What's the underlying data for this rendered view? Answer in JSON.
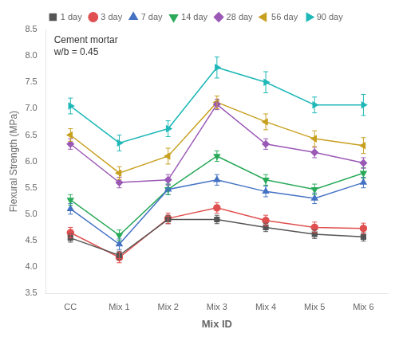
{
  "chart_data": {
    "type": "line",
    "categories": [
      "CC",
      "Mix 1",
      "Mix 2",
      "Mix 3",
      "Mix 4",
      "Mix 5",
      "Mix 6"
    ],
    "series": [
      {
        "name": "1 day",
        "color": "#555555",
        "marker": "square",
        "line_style": "solid",
        "values": [
          4.55,
          4.22,
          4.9,
          4.9,
          4.75,
          4.62,
          4.57
        ],
        "errors": [
          0.08,
          0.08,
          0.08,
          0.08,
          0.08,
          0.08,
          0.08
        ]
      },
      {
        "name": "3 day",
        "color": "#e05050",
        "marker": "circle",
        "line_style": "solid",
        "values": [
          4.65,
          4.18,
          4.92,
          5.12,
          4.88,
          4.75,
          4.73
        ],
        "errors": [
          0.1,
          0.1,
          0.1,
          0.1,
          0.1,
          0.1,
          0.1
        ]
      },
      {
        "name": "7 day",
        "color": "#4472c4",
        "marker": "triangle_up",
        "line_style": "solid",
        "values": [
          5.1,
          4.43,
          5.47,
          5.65,
          5.43,
          5.3,
          5.6
        ],
        "errors": [
          0.1,
          0.1,
          0.1,
          0.1,
          0.1,
          0.1,
          0.1
        ]
      },
      {
        "name": "14 day",
        "color": "#2aaa5a",
        "marker": "triangle_down",
        "line_style": "solid",
        "values": [
          5.27,
          4.6,
          5.47,
          6.1,
          5.65,
          5.47,
          5.78
        ],
        "errors": [
          0.1,
          0.1,
          0.1,
          0.1,
          0.1,
          0.1,
          0.1
        ]
      },
      {
        "name": "28 day",
        "color": "#9b59b6",
        "marker": "diamond",
        "line_style": "solid",
        "values": [
          6.33,
          5.6,
          5.65,
          7.08,
          6.33,
          6.17,
          5.97
        ],
        "errors": [
          0.1,
          0.1,
          0.1,
          0.1,
          0.1,
          0.1,
          0.1
        ]
      },
      {
        "name": "56 day",
        "color": "#c8a020",
        "marker": "triangle_left",
        "line_style": "solid",
        "values": [
          6.5,
          5.78,
          6.1,
          7.12,
          6.75,
          6.43,
          6.3
        ],
        "errors": [
          0.12,
          0.12,
          0.15,
          0.12,
          0.15,
          0.15,
          0.15
        ]
      },
      {
        "name": "90 day",
        "color": "#20b8b8",
        "marker": "triangle_right",
        "line_style": "solid",
        "values": [
          7.05,
          6.35,
          6.62,
          7.78,
          7.5,
          7.07,
          7.07
        ],
        "errors": [
          0.15,
          0.15,
          0.15,
          0.2,
          0.2,
          0.15,
          0.2
        ]
      }
    ],
    "xlabel": "Mix ID",
    "ylabel": "Flexural Strength (MPa)",
    "ylim": [
      3.5,
      8.5
    ],
    "yticks": [
      3.5,
      {
        "value": 4,
        "label": "4.0"
      },
      4.5,
      {
        "value": 5,
        "label": "5.0"
      },
      5.5,
      {
        "value": 6,
        "label": "6.0"
      },
      6.5,
      {
        "value": 7,
        "label": "7.0"
      },
      7.5,
      {
        "value": 8,
        "label": "8.0"
      },
      8.5
    ],
    "annotation": "Cement mortar\nw/b = 0.45",
    "grid": false,
    "legend": "top"
  }
}
